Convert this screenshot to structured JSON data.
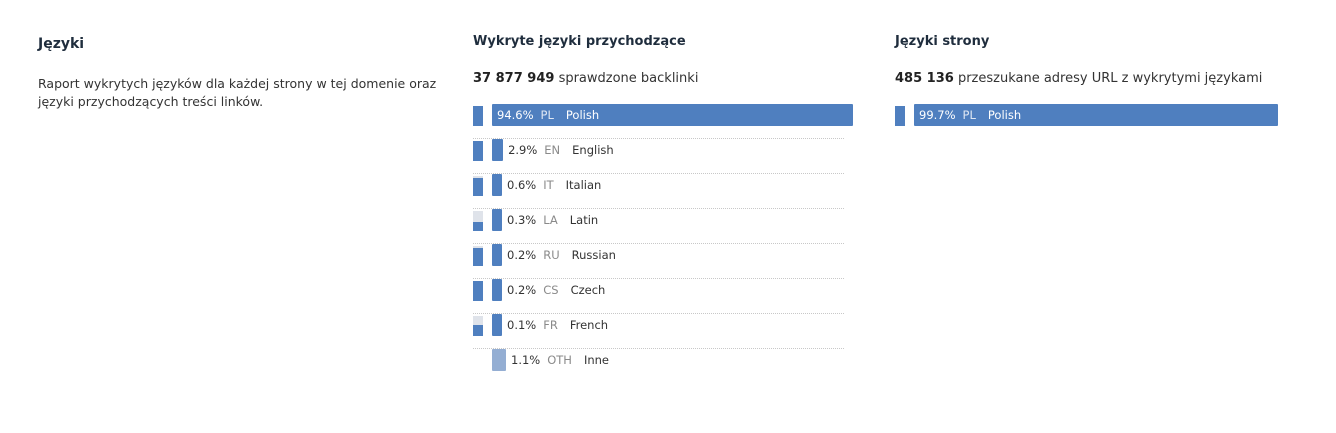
{
  "intro": {
    "title": "Języki",
    "description": "Raport wykrytych języków dla każdej strony w tej domenie oraz języki przychodzących treści linków."
  },
  "incoming": {
    "title": "Wykryte języki przychodzące",
    "count": "37 877 949",
    "count_label": "sprawdzone backlinki",
    "rows": [
      {
        "pct": "94.6%",
        "code": "PL",
        "name": "Polish",
        "value": 94.6,
        "mini_fill": 1.0
      },
      {
        "pct": "2.9%",
        "code": "EN",
        "name": "English",
        "value": 2.9,
        "mini_fill": 1.0
      },
      {
        "pct": "0.6%",
        "code": "IT",
        "name": "Italian",
        "value": 0.6,
        "mini_fill": 0.9
      },
      {
        "pct": "0.3%",
        "code": "LA",
        "name": "Latin",
        "value": 0.3,
        "mini_fill": 0.45
      },
      {
        "pct": "0.2%",
        "code": "RU",
        "name": "Russian",
        "value": 0.2,
        "mini_fill": 0.9
      },
      {
        "pct": "0.2%",
        "code": "CS",
        "name": "Czech",
        "value": 0.2,
        "mini_fill": 1.0
      },
      {
        "pct": "0.1%",
        "code": "FR",
        "name": "French",
        "value": 0.1,
        "mini_fill": 0.55
      },
      {
        "pct": "1.1%",
        "code": "OTH",
        "name": "Inne",
        "value": 1.1,
        "mini_fill": null
      }
    ]
  },
  "page_langs": {
    "title": "Języki strony",
    "count": "485 136",
    "count_label": "przeszukane adresy URL z wykrytymi językami",
    "rows": [
      {
        "pct": "99.7%",
        "code": "PL",
        "name": "Polish",
        "value": 99.7,
        "mini_fill": 1.0
      }
    ]
  },
  "colors": {
    "bar": "#4f7fbf",
    "other_bar": "#94aed3",
    "mini_bg": "#dfe3ea"
  }
}
